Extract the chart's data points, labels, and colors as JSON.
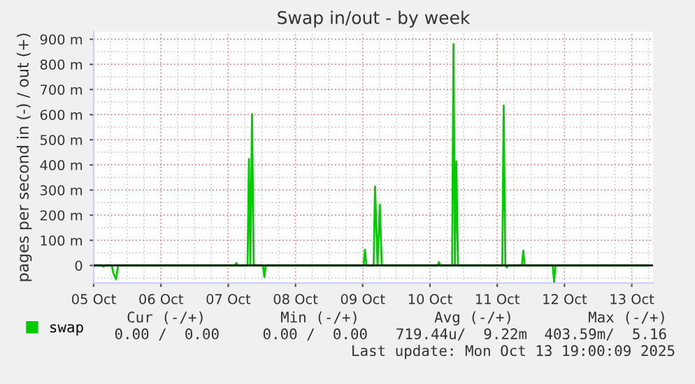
{
  "chart_data": {
    "type": "line",
    "title": "Swap in/out - by week",
    "ylabel": "pages per second in (-) / out (+)",
    "x": [
      "2025-10-05T00:00",
      "2025-10-05T03:00",
      "2025-10-05T03:30",
      "2025-10-05T04:00",
      "2025-10-05T06:30",
      "2025-10-05T07:00",
      "2025-10-05T08:00",
      "2025-10-05T08:42",
      "2025-10-07T02:24",
      "2025-10-07T02:54",
      "2025-10-07T03:24",
      "2025-10-07T06:54",
      "2025-10-07T07:24",
      "2025-10-07T07:54",
      "2025-10-07T08:30",
      "2025-10-07T09:06",
      "2025-10-07T12:24",
      "2025-10-07T12:54",
      "2025-10-07T13:24",
      "2025-10-09T00:18",
      "2025-10-09T00:48",
      "2025-10-09T01:18",
      "2025-10-09T03:54",
      "2025-10-09T04:24",
      "2025-10-09T05:18",
      "2025-10-09T06:06",
      "2025-10-09T06:48",
      "2025-10-10T02:42",
      "2025-10-10T03:12",
      "2025-10-10T03:42",
      "2025-10-10T07:54",
      "2025-10-10T08:24",
      "2025-10-10T08:54",
      "2025-10-10T09:24",
      "2025-10-10T10:00",
      "2025-10-11T01:48",
      "2025-10-11T02:18",
      "2025-10-11T02:54",
      "2025-10-11T03:24",
      "2025-10-11T03:54",
      "2025-10-11T08:48",
      "2025-10-11T09:18",
      "2025-10-11T09:48",
      "2025-10-11T19:48",
      "2025-10-11T20:18",
      "2025-10-11T20:48",
      "2025-10-13T06:00"
    ],
    "series": [
      {
        "name": "swap",
        "color": "#00cc00",
        "values": [
          0,
          0,
          -5,
          0,
          0,
          -30,
          -55,
          0,
          0,
          10,
          0,
          0,
          423,
          0,
          602,
          0,
          0,
          -46,
          0,
          0,
          63,
          0,
          0,
          314,
          0,
          242,
          0,
          0,
          13,
          0,
          0,
          881,
          0,
          414,
          0,
          0,
          636,
          0,
          -8,
          0,
          0,
          59,
          0,
          0,
          -65,
          0,
          0
        ]
      }
    ],
    "xlim": [
      "2025-10-05T00:00",
      "2025-10-13T07:36"
    ],
    "xticks": [
      {
        "value": "2025-10-05",
        "label": "05 Oct"
      },
      {
        "value": "2025-10-06",
        "label": "06 Oct"
      },
      {
        "value": "2025-10-07",
        "label": "07 Oct"
      },
      {
        "value": "2025-10-08",
        "label": "08 Oct"
      },
      {
        "value": "2025-10-09",
        "label": "09 Oct"
      },
      {
        "value": "2025-10-10",
        "label": "10 Oct"
      },
      {
        "value": "2025-10-11",
        "label": "11 Oct"
      },
      {
        "value": "2025-10-12",
        "label": "12 Oct"
      },
      {
        "value": "2025-10-13",
        "label": "13 Oct"
      }
    ],
    "ylim": [
      -70,
      930
    ],
    "yticks": [
      0,
      {
        "value": 100,
        "label": "100 m"
      },
      {
        "value": 200,
        "label": "200 m"
      },
      {
        "value": 300,
        "label": "300 m"
      },
      {
        "value": 400,
        "label": "400 m"
      },
      {
        "value": 500,
        "label": "500 m"
      },
      {
        "value": 600,
        "label": "600 m"
      },
      {
        "value": 700,
        "label": "700 m"
      },
      {
        "value": 800,
        "label": "800 m"
      },
      {
        "value": 900,
        "label": "900 m"
      }
    ],
    "ref_lines": [
      {
        "axis": "y",
        "value": 0,
        "color": "#000000"
      }
    ],
    "grid": true,
    "legend": "bottom left",
    "annotations": [
      "Cur (-/+)",
      "Min (-/+)",
      "Avg (-/+)",
      "Max (-/+)",
      "0.00 /  0.00",
      "0.00 /  0.00",
      "719.44u/  9.22m",
      "403.59m/  5.16",
      "Last update: Mon Oct 13 19:00:09 2025"
    ]
  }
}
